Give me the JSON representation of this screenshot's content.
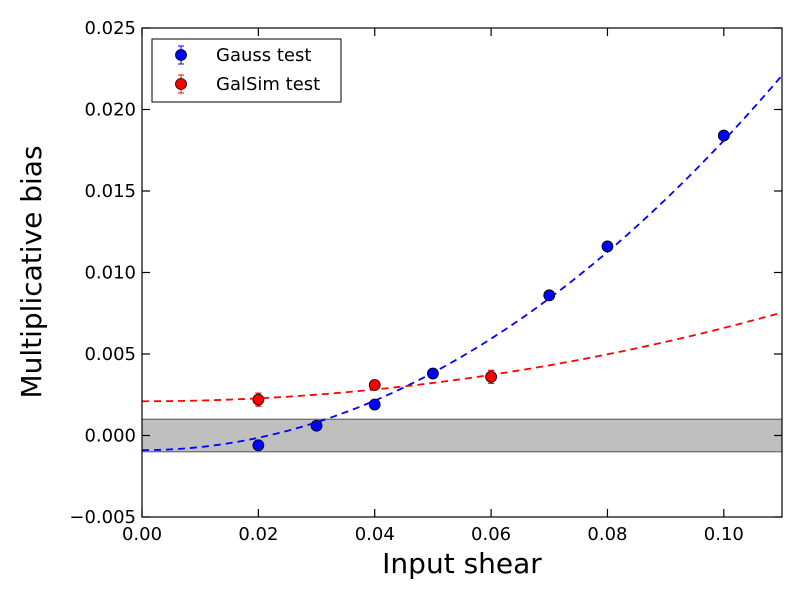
{
  "chart_data": {
    "type": "scatter",
    "xlabel": "Input shear",
    "ylabel": "Multiplicative bias",
    "xlim": [
      0.0,
      0.11
    ],
    "ylim": [
      -0.005,
      0.025
    ],
    "x_ticks": [
      0.0,
      0.02,
      0.04,
      0.06,
      0.08,
      0.1
    ],
    "x_tick_labels": [
      "0.00",
      "0.02",
      "0.04",
      "0.06",
      "0.08",
      "0.10"
    ],
    "y_ticks": [
      -0.005,
      0.0,
      0.005,
      0.01,
      0.015,
      0.02,
      0.025
    ],
    "y_tick_labels": [
      "−0.005",
      "0.000",
      "0.005",
      "0.010",
      "0.015",
      "0.020",
      "0.025"
    ],
    "grid": false,
    "legend_position": "top-left",
    "band": {
      "y_min": -0.001,
      "y_max": 0.001,
      "color": "#bfbfbf"
    },
    "series": [
      {
        "name": "Gauss test",
        "color": "#0000ff",
        "points": [
          {
            "x": 0.02,
            "y": -0.0006
          },
          {
            "x": 0.03,
            "y": 0.0006
          },
          {
            "x": 0.04,
            "y": 0.0019
          },
          {
            "x": 0.05,
            "y": 0.0038
          },
          {
            "x": 0.07,
            "y": 0.0086
          },
          {
            "x": 0.08,
            "y": 0.0116
          },
          {
            "x": 0.1,
            "y": 0.0184
          }
        ],
        "fit": {
          "style": "dashed",
          "a0": -0.0009,
          "a2": 1.9
        }
      },
      {
        "name": "GalSim test",
        "color": "#ff0000",
        "points": [
          {
            "x": 0.02,
            "y": 0.0022,
            "yerr": 0.0004
          },
          {
            "x": 0.04,
            "y": 0.0031,
            "yerr": 0.0003
          },
          {
            "x": 0.06,
            "y": 0.0036,
            "yerr": 0.0004
          }
        ],
        "fit": {
          "style": "dashed",
          "a0": 0.0021,
          "a2": 0.45
        }
      }
    ]
  }
}
